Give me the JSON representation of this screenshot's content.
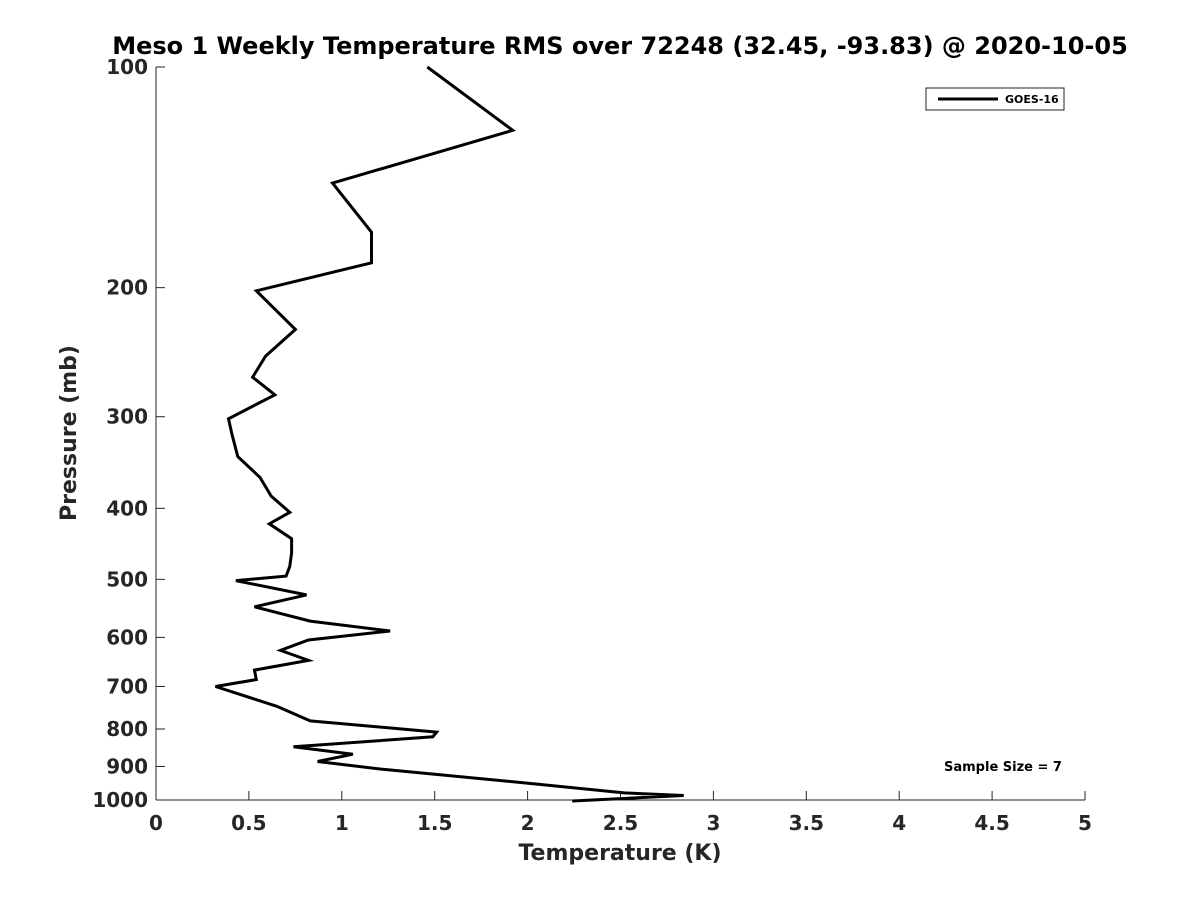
{
  "chart_data": {
    "type": "line",
    "title": "Meso 1 Weekly Temperature RMS over 72248 (32.45, -93.83) @ 2020-10-05",
    "xlabel": "Temperature (K)",
    "ylabel": "Pressure (mb)",
    "xlim": [
      0,
      5
    ],
    "ylim": [
      100,
      1000
    ],
    "y_scale": "log",
    "y_reversed": true,
    "grid": false,
    "legend_position": "top-right",
    "x_ticks": [
      "0",
      "0.5",
      "1",
      "1.5",
      "2",
      "2.5",
      "3",
      "3.5",
      "4",
      "4.5",
      "5"
    ],
    "x_tick_values": [
      0,
      0.5,
      1,
      1.5,
      2,
      2.5,
      3,
      3.5,
      4,
      4.5,
      5
    ],
    "y_ticks": [
      "100",
      "200",
      "300",
      "400",
      "500",
      "600",
      "700",
      "800",
      "900",
      "1000"
    ],
    "y_tick_values": [
      100,
      200,
      300,
      400,
      500,
      600,
      700,
      800,
      900,
      1000
    ],
    "series": [
      {
        "name": "GOES-16",
        "color": "#000000",
        "x": [
          1.46,
          1.92,
          0.95,
          1.16,
          1.16,
          0.54,
          0.75,
          0.59,
          0.52,
          0.64,
          0.39,
          0.41,
          0.44,
          0.56,
          0.62,
          0.72,
          0.61,
          0.73,
          0.73,
          0.72,
          0.7,
          0.43,
          0.81,
          0.53,
          0.83,
          1.26,
          0.82,
          0.67,
          0.82,
          0.53,
          0.54,
          0.32,
          0.65,
          0.83,
          1.51,
          1.49,
          0.74,
          1.06,
          0.87,
          1.22,
          2.03,
          2.52,
          2.84,
          2.24
        ],
        "y": [
          100,
          122,
          144,
          168,
          185,
          202,
          228,
          248,
          265,
          280,
          302,
          318,
          340,
          363,
          385,
          405,
          420,
          440,
          460,
          480,
          495,
          502,
          525,
          545,
          570,
          588,
          605,
          625,
          645,
          665,
          685,
          700,
          745,
          780,
          808,
          820,
          846,
          866,
          886,
          908,
          950,
          978,
          986,
          1003
        ]
      }
    ],
    "legend": [
      {
        "label": "GOES-16"
      }
    ],
    "annotations": [
      {
        "text": "Sample Size = 7"
      }
    ]
  }
}
